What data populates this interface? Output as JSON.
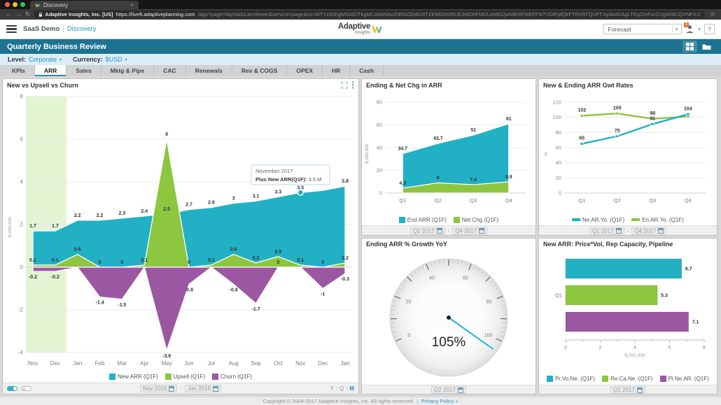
{
  "browser": {
    "tab_title": "Discovery",
    "cert_label": "Adaptive Insights, Inc. [US]",
    "url_host": "https://liveft.adaptiveplanning.com",
    "url_path": "/app?page=MyDialsLiteViewer&service=page&zx=MTYzIDEgMSAtOTkgMCAtMSAxIDRGODdGRTZEMDM2RUE3MDhFMDUzMDQwMERFMEFFNTVDIFpfQkFTRV9TQUFTXyAwIDAgLTEgZmFsc2UgWl9CQVNFX1NBQVNfIGZhbHNlIC0xIC0x/perspective/183831"
  },
  "header": {
    "breadcrumb_1": "SaaS Demo",
    "breadcrumb_2": "Discovery",
    "logo_line1": "Adaptive",
    "logo_line2": "Insights",
    "version_selector": "Forecast",
    "user_badge": "1",
    "help_label": "?"
  },
  "title_bar": {
    "title": "Quarterly Business Review"
  },
  "filters": {
    "level_label": "Level:",
    "level_value": "Corporate",
    "currency_label": "Currency:",
    "currency_value": "$USD"
  },
  "tabs": {
    "items": [
      "KPIs",
      "ARR",
      "Sales",
      "Mktg & Pipe",
      "CAC",
      "Renewals",
      "Rev & COGS",
      "OPEX",
      "HR",
      "Cash"
    ],
    "active": "ARR"
  },
  "ui": {
    "breadcrumb_separator": "|",
    "range_separator": "-",
    "period_separator": "|"
  },
  "chart_data": [
    {
      "id": "new-vs-upsell-vs-churn",
      "type": "area",
      "title": "New vs Upsell vs Churn",
      "ylabel": "$,000,000",
      "ylim": [
        -4,
        8
      ],
      "yticks": [
        8,
        6,
        4,
        2,
        0,
        -2,
        -4
      ],
      "categories": [
        "Nov",
        "Dec",
        "Jan",
        "Feb",
        "Mar",
        "Apr",
        "May",
        "Jun",
        "Jul",
        "Aug",
        "Sep",
        "Oct",
        "Nov",
        "Dec",
        "Jan"
      ],
      "series": [
        {
          "name": "New ARR (Q1F)",
          "color": "#22b0c4",
          "values": [
            1.7,
            1.7,
            2.2,
            2.2,
            2.3,
            2.4,
            2.5,
            2.7,
            2.8,
            3,
            3.1,
            3.3,
            3.5,
            3.6,
            3.8
          ],
          "labels": [
            "1.7",
            "1.7",
            "2.2",
            "2.2",
            "2.3",
            "2.4",
            "2.5",
            "2.7",
            "2.8",
            "3",
            "3.1",
            "3.3",
            "3.5",
            "",
            "3.8"
          ]
        },
        {
          "name": "Upsell (Q1F)",
          "color": "#8dc63f",
          "values": [
            0.1,
            0.1,
            0.6,
            0,
            0,
            0.1,
            6,
            0,
            0.1,
            0.6,
            0.2,
            0.5,
            0.1,
            0,
            0.2
          ],
          "labels": [
            "0.1",
            "0.1",
            "0.6",
            "0",
            "0",
            "0.1",
            "6",
            "0",
            "0.1",
            "0.6",
            "0.2",
            "0.5",
            "0.1",
            "0",
            "0.2"
          ]
        },
        {
          "name": "Churn (Q1F)",
          "color": "#9c57a3",
          "values": [
            -0.2,
            -0.2,
            0,
            -1.4,
            -1.5,
            0,
            -3.9,
            -0.8,
            0,
            -0.8,
            -1.7,
            0,
            0,
            -1,
            -0.3
          ],
          "labels": [
            "-0.2",
            "-0.2",
            "",
            "-1.4",
            "-1.5",
            "",
            "-3.9",
            "-0.8",
            "",
            "-0.8",
            "-1.7",
            "0",
            "",
            "-1",
            "-0.3"
          ]
        }
      ],
      "actuals_band_months": [
        "Nov",
        "Dec"
      ],
      "tooltip": {
        "line1": "November 2017",
        "label": "Plus New ARR(Q1F):",
        "value": "3.5 M",
        "index": 12
      },
      "date_from": "Nov 2016",
      "date_to": "Jan 2018",
      "period_toggle": {
        "options": [
          "Y",
          "Q",
          "M"
        ],
        "active": "M"
      }
    },
    {
      "id": "ending-net-chg-arr",
      "type": "area",
      "title": "Ending & Net Chg in ARR",
      "ylabel": "$,000,000",
      "ylim": [
        0,
        80
      ],
      "yticks": [
        80,
        60,
        40,
        20,
        0
      ],
      "categories": [
        "Q1",
        "Q2",
        "Q3",
        "Q4"
      ],
      "series": [
        {
          "name": "End ARR (Q1F)",
          "color": "#22b0c4",
          "values": [
            34.7,
            43.7,
            51,
            61
          ],
          "labels": [
            "34.7",
            "43.7",
            "51",
            "61"
          ]
        },
        {
          "name": "Net Chg (Q1F)",
          "color": "#8dc63f",
          "values": [
            4.3,
            9,
            7.4,
            9.9
          ],
          "labels": [
            "4.3",
            "9",
            "7.4",
            "9.9"
          ]
        }
      ],
      "date_from": "Q1 2017",
      "date_to": "Q4 2017"
    },
    {
      "id": "new-ending-arr-growth-rates",
      "type": "line",
      "title": "New & Ending ARR Gwt Rates",
      "ylabel": "%",
      "ylim": [
        0,
        120
      ],
      "yticks": [
        120,
        100,
        80,
        60,
        40,
        20,
        0
      ],
      "categories": [
        "Q1",
        "Q2",
        "Q3",
        "Q4"
      ],
      "series": [
        {
          "name": "Ne.AR.Yo. (Q1F)",
          "color": "#22b0c4",
          "values": [
            65,
            75,
            91,
            104
          ],
          "labels": [
            "65",
            "75",
            "91",
            "104"
          ]
        },
        {
          "name": "En.AR.Yo. (Q1F)",
          "color": "#8dc63f",
          "values": [
            102,
            105,
            98,
            101
          ],
          "labels": [
            "102",
            "105",
            "98",
            ""
          ]
        }
      ],
      "date_from": "Q1 2017",
      "date_to": "Q4 2017"
    },
    {
      "id": "ending-arr-growth-yoy",
      "type": "gauge",
      "title": "Ending ARR % Growth YoY",
      "min": 0,
      "max": 100,
      "tick_labels": [
        0,
        20,
        40,
        60,
        80,
        100
      ],
      "value": 105,
      "value_display": "105%",
      "date": "Q2 2017"
    },
    {
      "id": "new-arr-price-vol-rep-pipeline",
      "type": "hbar",
      "title": "New ARR: Price*Vol, Rep Capacity, Pipeline",
      "xlabel": "$,000,000",
      "xlim": [
        0,
        8
      ],
      "xticks": [
        0,
        2,
        4,
        6,
        8
      ],
      "categories": [
        "Q1"
      ],
      "series": [
        {
          "name": "Pr.Vo.Ne. (Q1F)",
          "color": "#22b0c4",
          "values": [
            6.7
          ]
        },
        {
          "name": "Re.Ca.Ne. (Q1F)",
          "color": "#8dc63f",
          "values": [
            5.3
          ]
        },
        {
          "name": "Pi.Ne.AR. (Q1F)",
          "color": "#9c57a3",
          "values": [
            7.1
          ]
        }
      ],
      "date": "Q1 2017"
    }
  ],
  "footer": {
    "copyright": "Copyright © 2004-2017 Adaptive Insights, Inc. All rights reserved.",
    "separator": "|",
    "privacy": "Privacy Policy »"
  }
}
